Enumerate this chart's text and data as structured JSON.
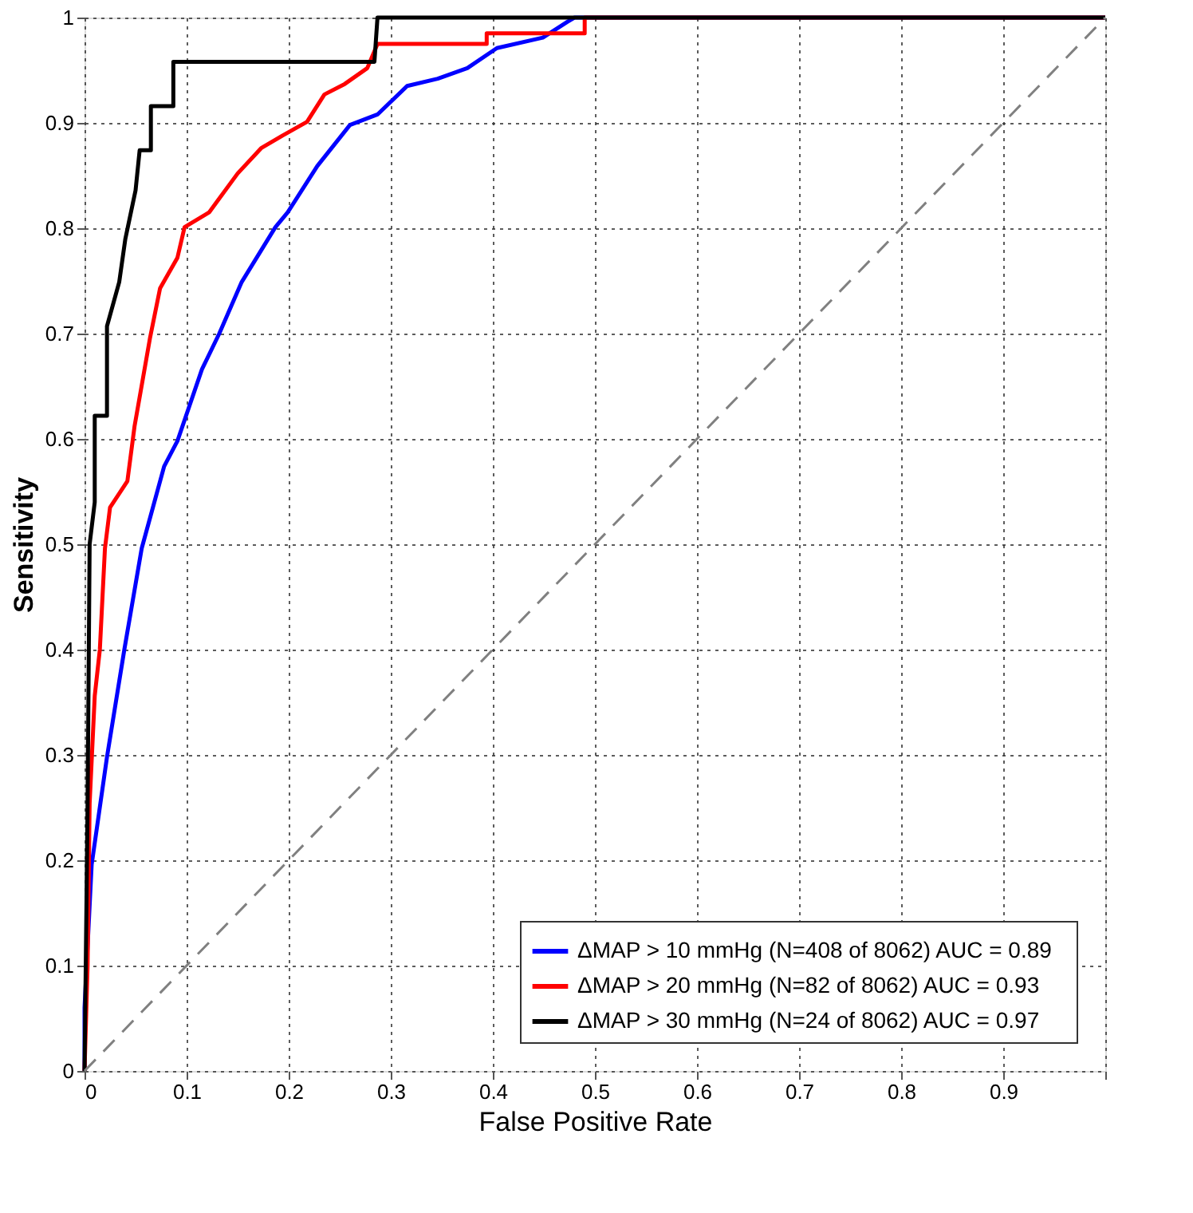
{
  "chart_data": {
    "type": "line",
    "xlabel": "False Positive Rate",
    "ylabel": "Sensitivity",
    "xlim": [
      0,
      1
    ],
    "ylim": [
      0,
      1
    ],
    "xticks": [
      0,
      0.1,
      0.2,
      0.3,
      0.4,
      0.5,
      0.6,
      0.7,
      0.8,
      0.9,
      {
        "value": 1,
        "label": null
      }
    ],
    "yticks": [
      0,
      0.1,
      0.2,
      0.3,
      0.4,
      0.5,
      0.6,
      0.7,
      0.8,
      0.9,
      1
    ],
    "grid": true,
    "legend": "bottom right",
    "marker": "none",
    "series": [
      {
        "name": "ΔMAP > 10 mmHg  (N=408 of 8062)  AUC = 0.89",
        "color": "#0000ff",
        "line_style": "solid",
        "x": [
          0,
          0.0,
          0.007,
          0.022,
          0.039,
          0.056,
          0.078,
          0.091,
          0.115,
          0.132,
          0.154,
          0.187,
          0.199,
          0.228,
          0.26,
          0.287,
          0.316,
          0.346,
          0.375,
          0.404,
          0.449,
          0.473,
          0.48,
          1
        ],
        "values": [
          0,
          0.06,
          0.196,
          0.298,
          0.4,
          0.496,
          0.574,
          0.598,
          0.666,
          0.7,
          0.749,
          0.801,
          0.815,
          0.859,
          0.898,
          0.908,
          0.935,
          0.942,
          0.952,
          0.971,
          0.981,
          0.996,
          1,
          1
        ]
      },
      {
        "name": "ΔMAP > 20 mmHg  (N=82 of 8062)  AUC = 0.93",
        "color": "#ff0000",
        "line_style": "solid",
        "x": [
          0,
          0.003,
          0.005,
          0.01,
          0.015,
          0.02,
          0.025,
          0.042,
          0.049,
          0.064,
          0.074,
          0.091,
          0.098,
          0.122,
          0.15,
          0.173,
          0.194,
          0.218,
          0.235,
          0.255,
          0.277,
          0.287,
          0.394,
          0.394,
          0.49,
          0.49,
          1
        ],
        "values": [
          0,
          0.1,
          0.254,
          0.356,
          0.4,
          0.496,
          0.535,
          0.56,
          0.612,
          0.695,
          0.743,
          0.772,
          0.801,
          0.815,
          0.852,
          0.876,
          0.888,
          0.901,
          0.927,
          0.937,
          0.952,
          0.975,
          0.975,
          0.985,
          0.985,
          1,
          1
        ]
      },
      {
        "name": "ΔMAP > 30 mmHg  (N=24 of 8062)  AUC = 0.97",
        "color": "#000000",
        "line_style": "solid",
        "x": [
          0,
          0.003,
          0.005,
          0.01,
          0.01,
          0.022,
          0.022,
          0.034,
          0.04,
          0.05,
          0.054,
          0.065,
          0.065,
          0.087,
          0.087,
          0.284,
          0.287,
          1
        ],
        "values": [
          0,
          0.25,
          0.5,
          0.54,
          0.622,
          0.622,
          0.707,
          0.749,
          0.79,
          0.836,
          0.874,
          0.874,
          0.916,
          0.916,
          0.958,
          0.958,
          1,
          1
        ]
      },
      {
        "color": "#808080",
        "line_style": "dashed",
        "x": [
          0,
          1
        ],
        "values": [
          0,
          1
        ]
      }
    ]
  }
}
